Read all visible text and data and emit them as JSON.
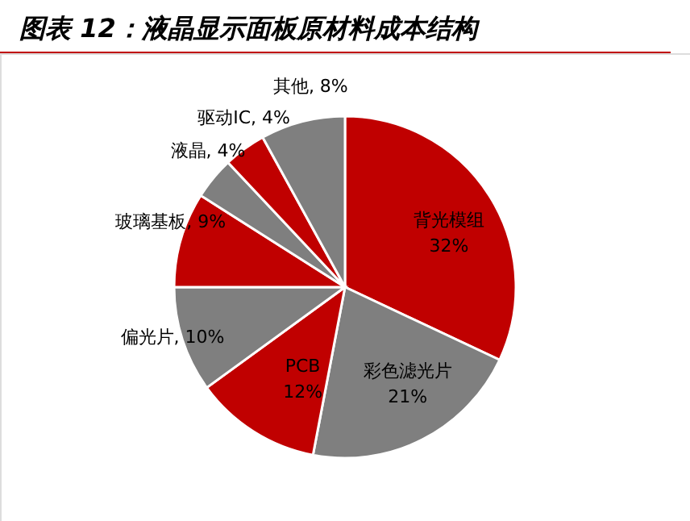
{
  "chart_data": {
    "type": "pie",
    "title": "图表 12：液晶显示面板原材料成本结构",
    "categories": [
      "背光模组",
      "彩色滤光片",
      "PCB",
      "偏光片",
      "玻璃基板",
      "液晶",
      "驱动IC",
      "其他"
    ],
    "values": [
      32,
      21,
      12,
      10,
      9,
      4,
      4,
      8
    ],
    "colors": [
      "#c00000",
      "#7f7f7f",
      "#c00000",
      "#7f7f7f",
      "#c00000",
      "#7f7f7f",
      "#c00000",
      "#7f7f7f"
    ],
    "value_labels": [
      "32%",
      "21%",
      "12%",
      "10%",
      "9%",
      "4%",
      "4%",
      "8%"
    ]
  }
}
